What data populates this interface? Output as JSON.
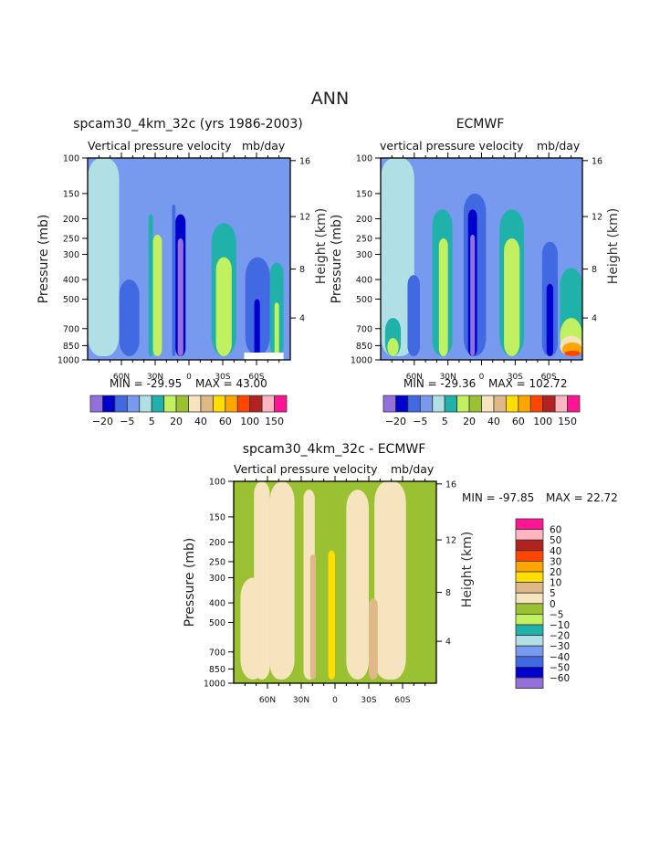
{
  "page_title": "ANN",
  "palette": {
    "colors": [
      "#9370db",
      "#0000cd",
      "#4169e1",
      "#7799ee",
      "#b0dfe5",
      "#20b2aa",
      "#c1f060",
      "#9ac132",
      "#f5e4bd",
      "#deb887",
      "#ffde00",
      "#ffa500",
      "#ff4500",
      "#b22222",
      "#ffb6c1",
      "#ff1493"
    ]
  },
  "chart_data": [
    {
      "type": "heatmap",
      "title": "spcam30_4km_32c (yrs 1986-2003)",
      "subtitle_left": "Vertical pressure velocity",
      "subtitle_right": "mb/day",
      "xlabel": "",
      "ylabel": "Pressure (mb)",
      "y2label": "Height (km)",
      "x_tick_labels": [
        "60N",
        "30N",
        "0",
        "30S",
        "60S"
      ],
      "x_tick_values": [
        60,
        30,
        0,
        -30,
        -60
      ],
      "xlim": [
        90,
        -90
      ],
      "y_tick_labels": [
        "100",
        "150",
        "200",
        "250",
        "300",
        "400",
        "500",
        "700",
        "850",
        "1000"
      ],
      "ylim": [
        1000,
        100
      ],
      "y_scale": "log",
      "y2_tick_labels": [
        "4",
        "8",
        "12",
        "16"
      ],
      "min_label": "MIN = -29.95",
      "max_label": "MAX =  43.00",
      "min": -29.95,
      "max": 43.0,
      "colorbar": {
        "orientation": "horizontal",
        "tick_labels": [
          "-20",
          "-5",
          "5",
          "20",
          "40",
          "60",
          "100",
          "150"
        ]
      },
      "bands": [
        {
          "lat_start": 90,
          "lat_end": 62,
          "top": 100,
          "color_index": 4
        },
        {
          "lat_start": 62,
          "lat_end": 44,
          "top": 400,
          "color_index": 2
        },
        {
          "lat_start": 44,
          "lat_end": 36,
          "top": 230,
          "color_index": 3
        },
        {
          "lat_start": 36,
          "lat_end": 32,
          "top": 190,
          "color_index": 5
        },
        {
          "lat_start": 32,
          "lat_end": 24,
          "top": 240,
          "color_index": 6
        },
        {
          "lat_start": 15,
          "lat_end": 12,
          "top": 170,
          "color_index": 2
        },
        {
          "lat_start": 12,
          "lat_end": 3,
          "top": 190,
          "color_index": 1
        },
        {
          "lat_start": 10,
          "lat_end": 5,
          "top": 250,
          "color_index": 0
        },
        {
          "lat_start": -20,
          "lat_end": -42,
          "top": 210,
          "color_index": 5
        },
        {
          "lat_start": -24,
          "lat_end": -38,
          "top": 310,
          "color_index": 6
        },
        {
          "lat_start": -50,
          "lat_end": -72,
          "top": 310,
          "color_index": 2
        },
        {
          "lat_start": -58,
          "lat_end": -63,
          "top": 500,
          "color_index": 1
        },
        {
          "lat_start": -72,
          "lat_end": -84,
          "top": 330,
          "color_index": 5
        },
        {
          "lat_start": -76,
          "lat_end": -80,
          "top": 520,
          "color_index": 6
        }
      ],
      "missing_region": {
        "lat_start": -49,
        "lat_end": -84,
        "bottom_from": 930
      }
    },
    {
      "type": "heatmap",
      "title": "ECMWF",
      "subtitle_left": "vertical pressure velocity",
      "subtitle_right": "mb/day",
      "ylabel": "Pressure (mb)",
      "y2label": "Height (km)",
      "x_tick_labels": [
        "60N",
        "30N",
        "0",
        "30S",
        "60S"
      ],
      "x_tick_values": [
        60,
        30,
        0,
        -30,
        -60
      ],
      "xlim": [
        90,
        -90
      ],
      "y_tick_labels": [
        "100",
        "150",
        "200",
        "250",
        "300",
        "400",
        "500",
        "700",
        "850",
        "1000"
      ],
      "ylim": [
        1000,
        100
      ],
      "y_scale": "log",
      "y2_tick_labels": [
        "4",
        "8",
        "12",
        "16"
      ],
      "min_label": "MIN = -29.36",
      "max_label": "MAX = 102.72",
      "min": -29.36,
      "max": 102.72,
      "colorbar": {
        "orientation": "horizontal",
        "tick_labels": [
          "-20",
          "-5",
          "5",
          "20",
          "40",
          "60",
          "100",
          "150"
        ]
      },
      "bands": [
        {
          "lat_start": 90,
          "lat_end": 60,
          "top": 100,
          "color_index": 4
        },
        {
          "lat_start": 66,
          "lat_end": 55,
          "top": 380,
          "color_index": 2
        },
        {
          "lat_start": 86,
          "lat_end": 72,
          "top": 620,
          "color_index": 5
        },
        {
          "lat_start": 84,
          "lat_end": 74,
          "top": 780,
          "color_index": 6
        },
        {
          "lat_start": 44,
          "lat_end": 26,
          "top": 180,
          "color_index": 5
        },
        {
          "lat_start": 38,
          "lat_end": 30,
          "top": 250,
          "color_index": 6
        },
        {
          "lat_start": 16,
          "lat_end": -4,
          "top": 150,
          "color_index": 2
        },
        {
          "lat_start": 12,
          "lat_end": 4,
          "top": 180,
          "color_index": 1
        },
        {
          "lat_start": 10,
          "lat_end": 6,
          "top": 240,
          "color_index": 0
        },
        {
          "lat_start": -16,
          "lat_end": -38,
          "top": 180,
          "color_index": 5
        },
        {
          "lat_start": -20,
          "lat_end": -34,
          "top": 250,
          "color_index": 6
        },
        {
          "lat_start": -54,
          "lat_end": -68,
          "top": 260,
          "color_index": 2
        },
        {
          "lat_start": -58,
          "lat_end": -64,
          "top": 420,
          "color_index": 1
        },
        {
          "lat_start": -70,
          "lat_end": -90,
          "top": 350,
          "color_index": 5
        },
        {
          "lat_start": -70,
          "lat_end": -90,
          "top": 620,
          "color_index": 6
        },
        {
          "lat_start": -70,
          "lat_end": -90,
          "top": 760,
          "color_index": 8
        },
        {
          "lat_start": -72,
          "lat_end": -90,
          "top": 820,
          "color_index": 11
        },
        {
          "lat_start": -74,
          "lat_end": -88,
          "top": 900,
          "color_index": 12
        }
      ]
    },
    {
      "type": "heatmap",
      "title": "spcam30_4km_32c - ECMWF",
      "subtitle_left": "Vertical pressure velocity",
      "subtitle_right": "mb/day",
      "ylabel": "Pressure (mb)",
      "y2label": "Height (km)",
      "x_tick_labels": [
        "60N",
        "30N",
        "0",
        "30S",
        "60S"
      ],
      "x_tick_values": [
        60,
        30,
        0,
        -30,
        -60
      ],
      "xlim": [
        90,
        -90
      ],
      "y_tick_labels": [
        "100",
        "150",
        "200",
        "250",
        "300",
        "400",
        "500",
        "700",
        "850",
        "1000"
      ],
      "ylim": [
        1000,
        100
      ],
      "y_scale": "log",
      "y2_tick_labels": [
        "4",
        "8",
        "12",
        "16"
      ],
      "min_label": "MIN = -97.85",
      "max_label": "MAX =  22.72",
      "min": -97.85,
      "max": 22.72,
      "colorbar": {
        "orientation": "vertical",
        "tick_labels": [
          "60",
          "50",
          "40",
          "30",
          "20",
          "10",
          "5",
          "0",
          "-5",
          "-10",
          "-20",
          "-30",
          "-40",
          "-50",
          "-60"
        ],
        "colors": [
          "#ff1493",
          "#ffb6c1",
          "#b22222",
          "#ff4500",
          "#ffa500",
          "#ffde00",
          "#deb887",
          "#f5e4bd",
          "#9ac132",
          "#c1f060",
          "#20b2aa",
          "#b0dfe5",
          "#7799ee",
          "#4169e1",
          "#0000cd",
          "#9370db"
        ]
      },
      "bands": [
        {
          "lat_start": 90,
          "lat_end": 72,
          "top": 100,
          "color_index": 7
        },
        {
          "lat_start": 72,
          "lat_end": 58,
          "top": 100,
          "color_index": 8
        },
        {
          "lat_start": 58,
          "lat_end": 36,
          "top": 100,
          "color_index": 8
        },
        {
          "lat_start": 58,
          "lat_end": 40,
          "top": 140,
          "color_index": 8
        },
        {
          "lat_start": 84,
          "lat_end": 62,
          "top": 300,
          "color_index": 8
        },
        {
          "lat_start": 28,
          "lat_end": 18,
          "top": 110,
          "color_index": 8
        },
        {
          "lat_start": 22,
          "lat_end": 17,
          "top": 230,
          "color_index": 9
        },
        {
          "lat_start": 6,
          "lat_end": 0,
          "top": 220,
          "color_index": 10
        },
        {
          "lat_start": -10,
          "lat_end": -30,
          "top": 110,
          "color_index": 8
        },
        {
          "lat_start": -35,
          "lat_end": -63,
          "top": 100,
          "color_index": 8
        },
        {
          "lat_start": -30,
          "lat_end": -38,
          "top": 380,
          "color_index": 9
        }
      ]
    }
  ]
}
